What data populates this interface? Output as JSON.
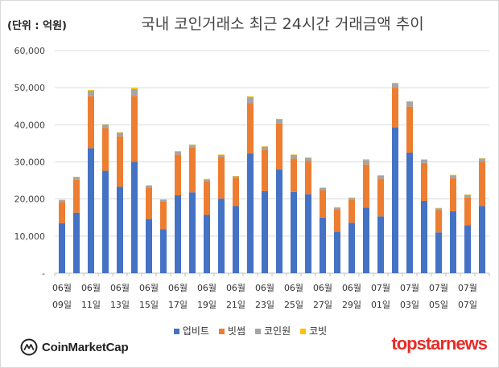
{
  "header": {
    "unit": "(단위 : 억원)"
  },
  "branding": {
    "left": "CoinMarketCap",
    "right": "topstarnews"
  },
  "colors": {
    "upbit": "#4472c4",
    "bithumb": "#ed7d31",
    "coinone": "#a5a5a5",
    "korbit": "#ffc000",
    "grid": "#d9d9d9",
    "axis": "#bfbfbf"
  },
  "chart_data": {
    "type": "bar",
    "stacked": true,
    "title": "국내 코인거래소 최근 24시간 거래금액 추이",
    "ylim": [
      0,
      60000
    ],
    "yticks": [
      "-",
      "10,000",
      "20,000",
      "30,000",
      "40,000",
      "50,000",
      "60,000"
    ],
    "grid": true,
    "legend_position": "bottom",
    "categories": [
      "06-09",
      "06-10",
      "06-11",
      "06-12",
      "06-13",
      "06-14",
      "06-15",
      "06-16",
      "06-17",
      "06-18",
      "06-19",
      "06-20",
      "06-21",
      "06-22",
      "06-23",
      "06-24",
      "06-25",
      "06-26",
      "06-27",
      "06-28",
      "06-29",
      "06-30",
      "07-01",
      "07-02",
      "07-03",
      "07-04",
      "07-05",
      "07-06",
      "07-07",
      "07-08"
    ],
    "tick_labels": [
      {
        "month": "06월",
        "day": "09일"
      },
      {
        "month": "06월",
        "day": "11일"
      },
      {
        "month": "06월",
        "day": "13일"
      },
      {
        "month": "06월",
        "day": "15일"
      },
      {
        "month": "06월",
        "day": "17일"
      },
      {
        "month": "06월",
        "day": "19일"
      },
      {
        "month": "06월",
        "day": "21일"
      },
      {
        "month": "06월",
        "day": "23일"
      },
      {
        "month": "06월",
        "day": "25일"
      },
      {
        "month": "06월",
        "day": "27일"
      },
      {
        "month": "06월",
        "day": "29일"
      },
      {
        "month": "07월",
        "day": "01일"
      },
      {
        "month": "07월",
        "day": "03일"
      },
      {
        "month": "07월",
        "day": "05일"
      },
      {
        "month": "07월",
        "day": "07일"
      }
    ],
    "series": [
      {
        "name": "업비트",
        "values": [
          13500,
          16300,
          33700,
          27600,
          23300,
          30000,
          14600,
          11800,
          21000,
          21800,
          15700,
          20100,
          18100,
          32300,
          22100,
          28000,
          21900,
          21300,
          15000,
          11200,
          13600,
          17700,
          15300,
          39300,
          32500,
          19500,
          11000,
          16700,
          12900,
          18100
        ]
      },
      {
        "name": "빗썸",
        "values": [
          5700,
          8900,
          14000,
          11500,
          13600,
          17800,
          8500,
          7500,
          11000,
          12000,
          9000,
          11200,
          7600,
          13600,
          11200,
          12300,
          9000,
          9000,
          7400,
          6000,
          6200,
          11600,
          10200,
          10700,
          12400,
          10200,
          6000,
          8900,
          7500,
          11900
        ]
      },
      {
        "name": "코인원",
        "values": [
          500,
          700,
          1500,
          1000,
          1000,
          1800,
          500,
          500,
          800,
          800,
          600,
          600,
          400,
          1600,
          800,
          1200,
          1000,
          800,
          600,
          500,
          500,
          1200,
          800,
          1200,
          1300,
          900,
          500,
          800,
          700,
          900
        ]
      },
      {
        "name": "코빗",
        "values": [
          100,
          100,
          200,
          100,
          100,
          400,
          100,
          100,
          100,
          100,
          100,
          100,
          100,
          200,
          100,
          100,
          100,
          100,
          100,
          100,
          100,
          200,
          100,
          100,
          200,
          100,
          100,
          100,
          100,
          100
        ]
      }
    ]
  }
}
